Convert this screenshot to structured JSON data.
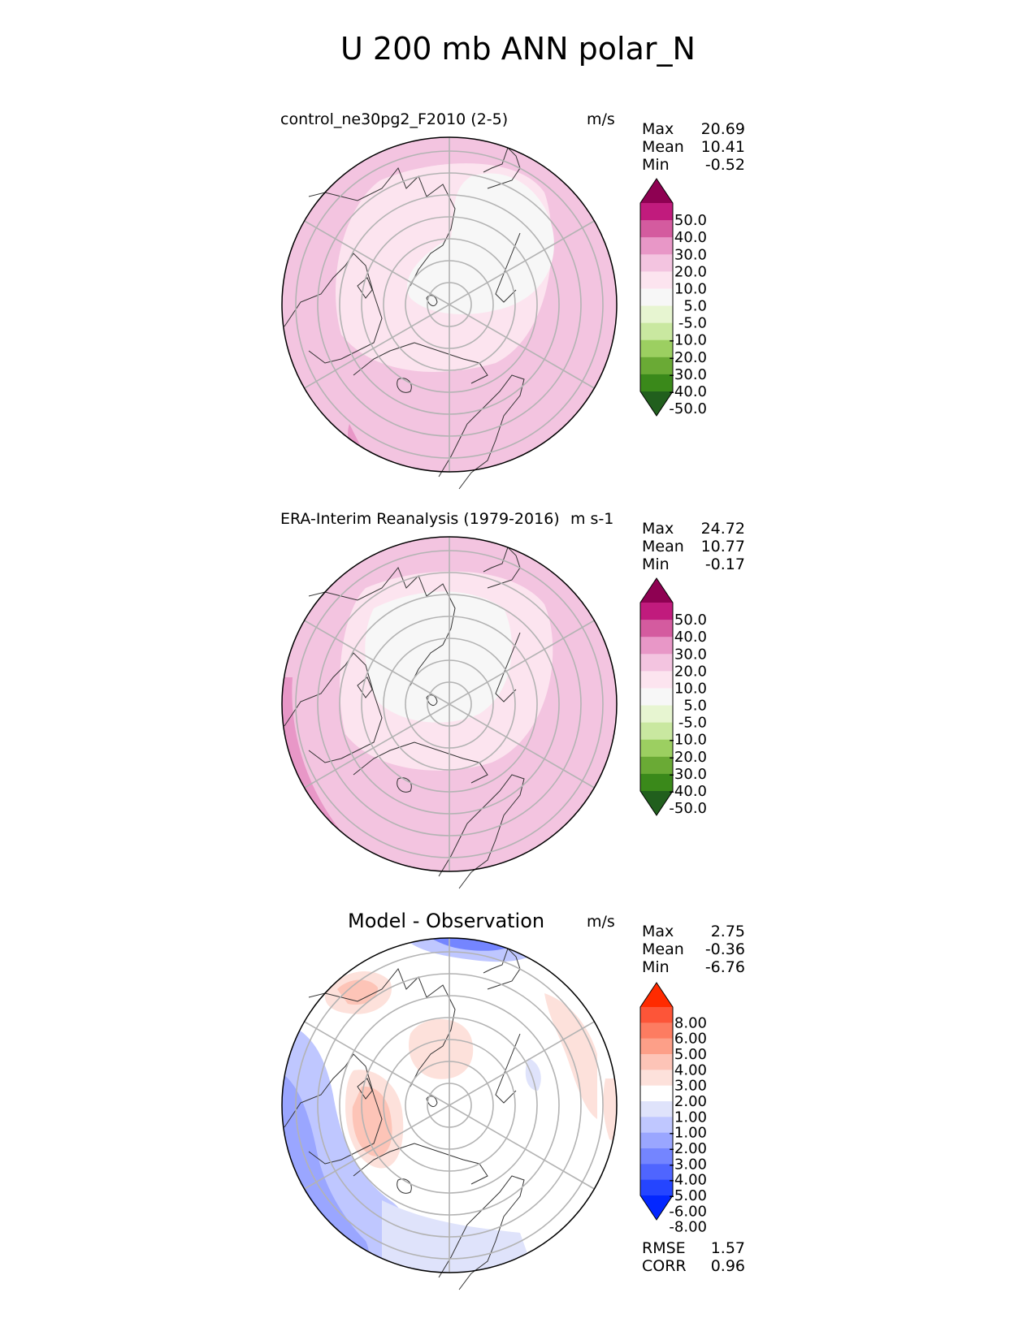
{
  "title": "U 200 mb ANN polar_N",
  "colors": {
    "test_scale": [
      "#215f1d",
      "#3a891a",
      "#6aaa35",
      "#9ccf61",
      "#c9e8a0",
      "#e7f5d1",
      "#f7f7f7",
      "#fce4ef",
      "#f3c4e0",
      "#e897c7",
      "#d45b9f",
      "#c11b7d",
      "#8e0152"
    ],
    "diff_scale": [
      "#0327ff",
      "#2545ff",
      "#4f65ff",
      "#7485ff",
      "#9aa6ff",
      "#bfc7ff",
      "#dfe3fb",
      "#ffffff",
      "#fde1db",
      "#fdc4b7",
      "#fd9f88",
      "#fd7c61",
      "#fd5538",
      "#ff2b00"
    ]
  },
  "panels": [
    {
      "title": "control_ne30pg2_F2010 (2-5)",
      "units": "m/s",
      "stats": [
        {
          "label": "Max",
          "value": "20.69"
        },
        {
          "label": "Mean",
          "value": "10.41"
        },
        {
          "label": "Min",
          "value": "-0.52"
        }
      ],
      "colorbar_labels": [
        "50.0",
        "40.0",
        "30.0",
        "20.0",
        "10.0",
        "5.0",
        "-5.0",
        "-10.0",
        "-20.0",
        "-30.0",
        "-40.0",
        "-50.0"
      ]
    },
    {
      "title": "ERA-Interim Reanalysis (1979-2016)",
      "units": "m s-1",
      "stats": [
        {
          "label": "Max",
          "value": "24.72"
        },
        {
          "label": "Mean",
          "value": "10.77"
        },
        {
          "label": "Min",
          "value": "-0.17"
        }
      ],
      "colorbar_labels": [
        "50.0",
        "40.0",
        "30.0",
        "20.0",
        "10.0",
        "5.0",
        "-5.0",
        "-10.0",
        "-20.0",
        "-30.0",
        "-40.0",
        "-50.0"
      ]
    },
    {
      "title": "Model - Observation",
      "units": "m/s",
      "stats": [
        {
          "label": "Max",
          "value": "2.75"
        },
        {
          "label": "Mean",
          "value": "-0.36"
        },
        {
          "label": "Min",
          "value": "-6.76"
        }
      ],
      "colorbar_labels": [
        "8.00",
        "6.00",
        "5.00",
        "4.00",
        "3.00",
        "2.00",
        "1.00",
        "-1.00",
        "-2.00",
        "-3.00",
        "-4.00",
        "-5.00",
        "-6.00",
        "-8.00"
      ],
      "metrics": [
        {
          "label": "RMSE",
          "value": "1.57"
        },
        {
          "label": "CORR",
          "value": "0.96"
        }
      ]
    }
  ]
}
